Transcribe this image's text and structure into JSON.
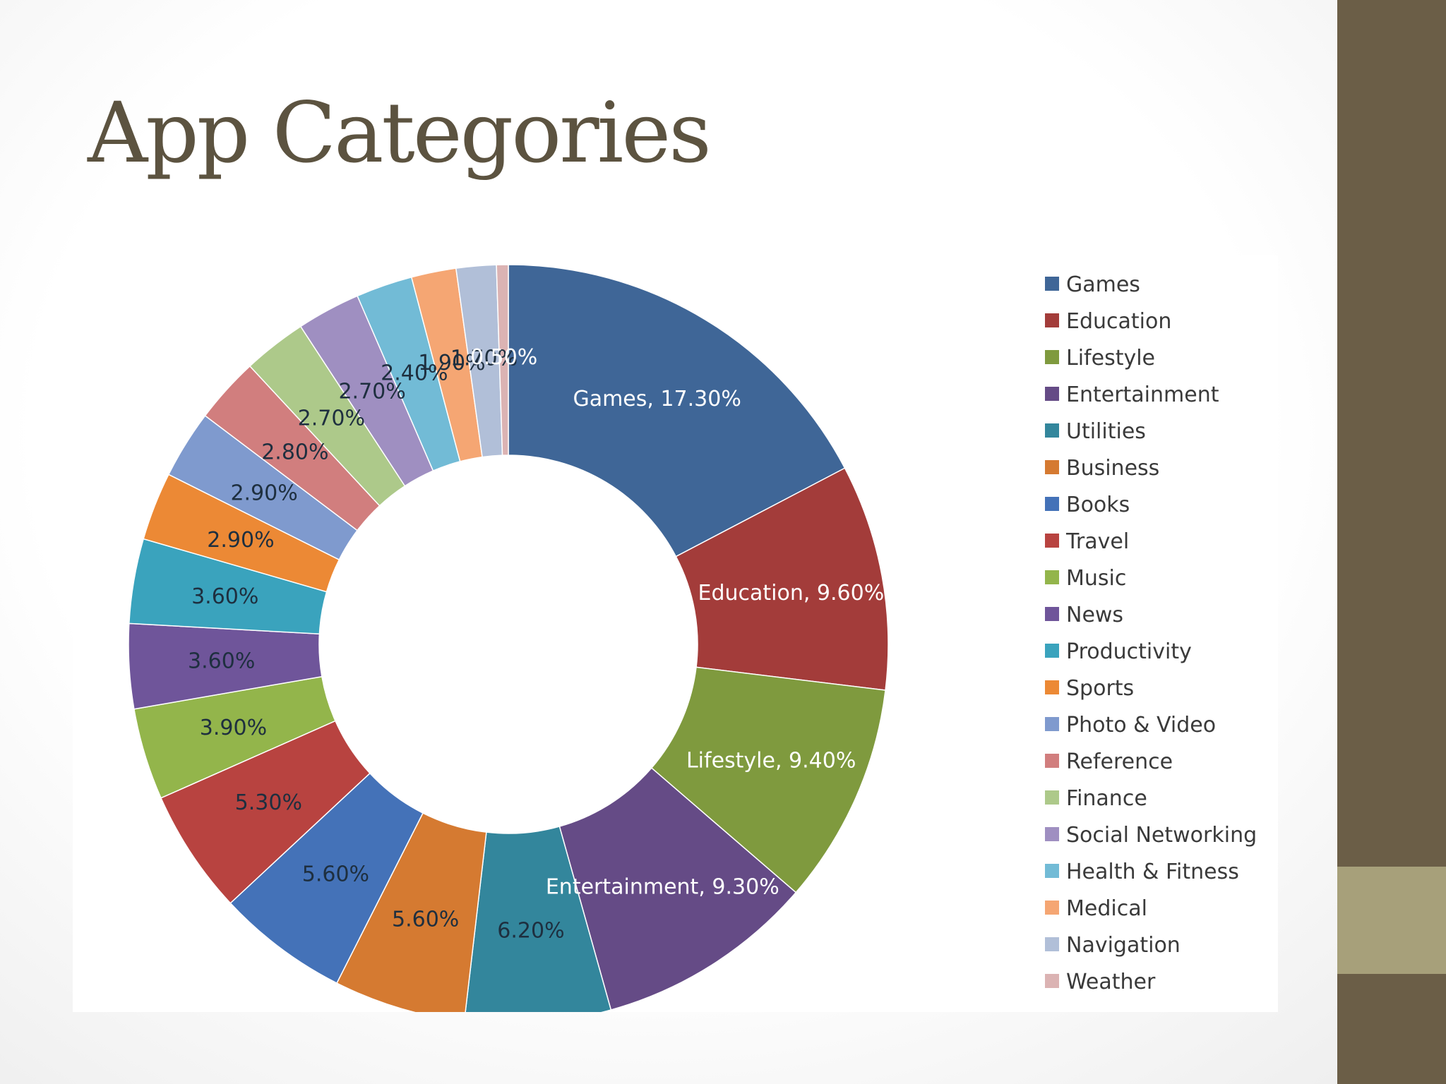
{
  "slide": {
    "title": "App Categories",
    "colors": {
      "title": "#5c5340",
      "band": "#6b5e47",
      "band_accent": "#a7a07a"
    }
  },
  "chart_data": {
    "type": "pie",
    "donut": true,
    "title": "",
    "legend_position": "right",
    "categories": [
      "Games",
      "Education",
      "Lifestyle",
      "Entertainment",
      "Utilities",
      "Business",
      "Books",
      "Travel",
      "Music",
      "News",
      "Productivity",
      "Sports",
      "Photo & Video",
      "Reference",
      "Finance",
      "Social Networking",
      "Health & Fitness",
      "Medical",
      "Navigation",
      "Weather"
    ],
    "values": [
      17.3,
      9.6,
      9.4,
      9.3,
      6.2,
      5.6,
      5.6,
      5.3,
      3.9,
      3.6,
      3.6,
      2.9,
      2.9,
      2.8,
      2.7,
      2.7,
      2.4,
      1.9,
      1.7,
      0.5
    ],
    "data_labels": [
      "Games, 17.30%",
      "Education, 9.60%",
      "Lifestyle, 9.40%",
      "Entertainment, 9.30%",
      "6.20%",
      "5.60%",
      "5.60%",
      "5.30%",
      "3.90%",
      "3.60%",
      "3.60%",
      "2.90%",
      "2.90%",
      "2.80%",
      "2.70%",
      "2.70%",
      "2.40%",
      "1.90%",
      "1.70%",
      "0.50%"
    ],
    "colors": [
      "#3f6697",
      "#a33c3a",
      "#7f9a3e",
      "#654b86",
      "#33869c",
      "#d57a31",
      "#4472b8",
      "#b84340",
      "#93b54b",
      "#6f559a",
      "#3aa3bd",
      "#ec8935",
      "#7f9ace",
      "#d17e7e",
      "#adc98a",
      "#9f8fc1",
      "#72bbd6",
      "#f5a673",
      "#b1bfd8",
      "#dbb3b3"
    ],
    "label_colors": [
      "#ffffff",
      "#ffffff",
      "#ffffff",
      "#ffffff",
      "#1e2f3f",
      "#1e2f3f",
      "#1e2f3f",
      "#1e2f3f",
      "#1e2f3f",
      "#1e2f3f",
      "#1e2f3f",
      "#1e2f3f",
      "#1e2f3f",
      "#1e2f3f",
      "#1e2f3f",
      "#1e2f3f",
      "#1e2f3f",
      "#1e2f3f",
      "#1e2f3f",
      "#ffffff"
    ]
  }
}
